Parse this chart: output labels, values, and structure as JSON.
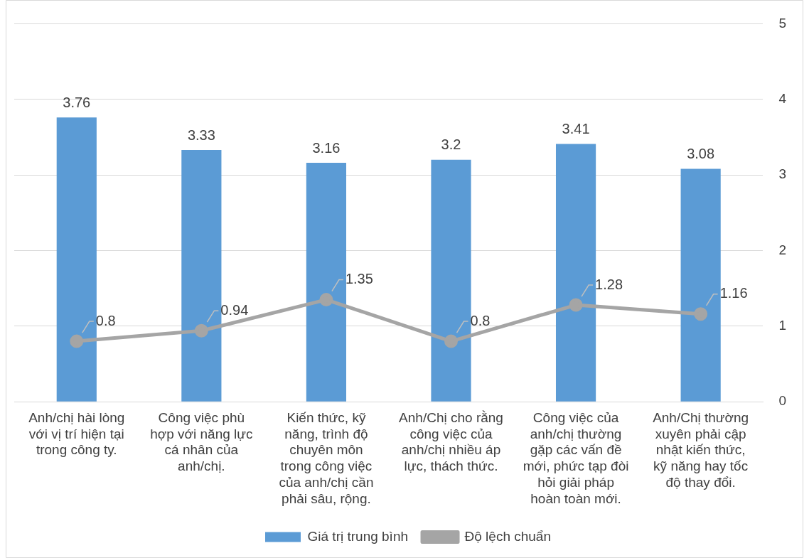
{
  "chart_data": {
    "type": "bar",
    "categories": [
      "Anh/chị hài lòng với vị trí hiện tại trong công ty.",
      "Công việc phù hợp với năng lực cá nhân của anh/chị.",
      "Kiến thức, kỹ năng, trình độ chuyên môn trong công việc của anh/chị cần phải sâu, rộng.",
      "Anh/Chị cho rằng công việc của anh/chị nhiều áp lực, thách thức.",
      "Công việc của anh/chị thường gặp các vấn đề mới, phức tạp đòi hỏi giải pháp hoàn toàn mới.",
      "Anh/Chị thường xuyên phải cập nhật kiến thức, kỹ năng hay tốc độ thay đổi."
    ],
    "series": [
      {
        "name": "Giá trị trung bình",
        "color": "#5b9bd5",
        "values": [
          3.76,
          3.33,
          3.16,
          3.2,
          3.41,
          3.08
        ]
      },
      {
        "name": "Độ lệch chuẩn",
        "type": "line",
        "color": "#a5a5a5",
        "marker": "circle",
        "values": [
          0.8,
          0.94,
          1.35,
          0.8,
          1.28,
          1.16
        ]
      }
    ],
    "ylim": [
      0,
      5
    ],
    "yticks": [
      0,
      1,
      2,
      3,
      4,
      5
    ],
    "grid": "y",
    "legend": "bottom",
    "data_labels": true
  }
}
